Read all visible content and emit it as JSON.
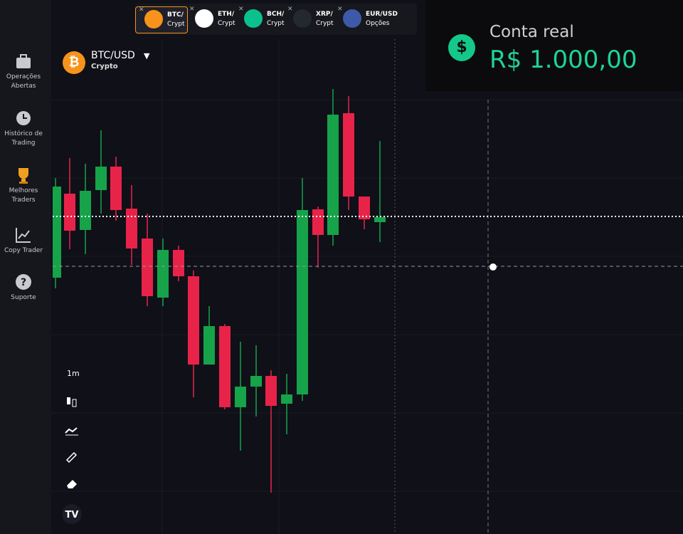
{
  "tabs": [
    {
      "name": "BTC/",
      "sub": "Crypt"
    },
    {
      "name": "ETH/",
      "sub": "Crypt"
    },
    {
      "name": "BCH/",
      "sub": "Crypt"
    },
    {
      "name": "XRP/",
      "sub": "Crypt"
    },
    {
      "name": "EUR/USD",
      "sub": "Opções"
    }
  ],
  "sidebar": [
    {
      "label": "Operações Abertas"
    },
    {
      "label": "Histórico de Trading"
    },
    {
      "label": "Melhores Traders"
    },
    {
      "label": "Copy Trader"
    },
    {
      "label": "Suporte"
    }
  ],
  "asset": {
    "name": "BTC/USD",
    "sub": "Crypto"
  },
  "account": {
    "label": "Conta real",
    "balance": "R$ 1.000,00"
  },
  "timeframe": "1m"
}
